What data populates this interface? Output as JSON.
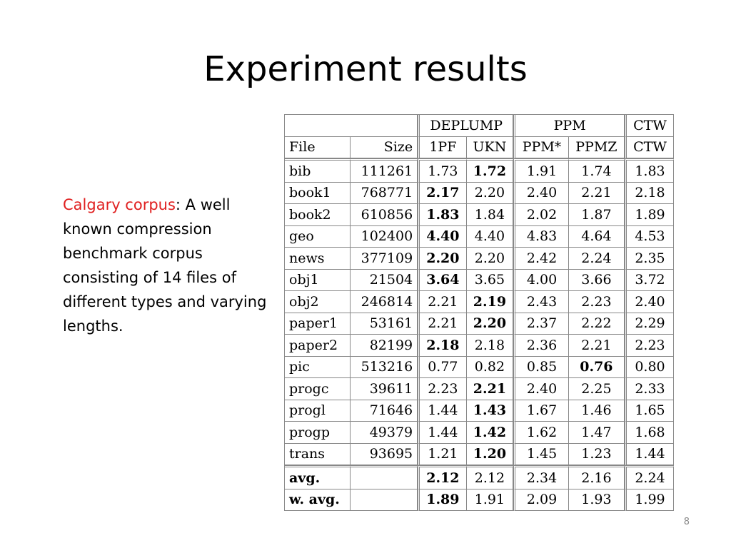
{
  "slide": {
    "title": "Experiment results",
    "description_highlight": "Calgary corpus",
    "description_rest": ": A well known compression benchmark corpus consisting of 14 files of different types and varying lengths.",
    "page_number": "8"
  },
  "table": {
    "group_headers": [
      "DEPLUMP",
      "PPM",
      "CTW"
    ],
    "col_headers": [
      "File",
      "Size",
      "1PF",
      "UKN",
      "PPM*",
      "PPMZ",
      "CTW"
    ],
    "rows": [
      {
        "file": "bib",
        "size": "111261",
        "vals": [
          "1.73",
          "1.72",
          "1.91",
          "1.74",
          "1.83"
        ],
        "bold": [
          false,
          true,
          false,
          false,
          false
        ]
      },
      {
        "file": "book1",
        "size": "768771",
        "vals": [
          "2.17",
          "2.20",
          "2.40",
          "2.21",
          "2.18"
        ],
        "bold": [
          true,
          false,
          false,
          false,
          false
        ]
      },
      {
        "file": "book2",
        "size": "610856",
        "vals": [
          "1.83",
          "1.84",
          "2.02",
          "1.87",
          "1.89"
        ],
        "bold": [
          true,
          false,
          false,
          false,
          false
        ]
      },
      {
        "file": "geo",
        "size": "102400",
        "vals": [
          "4.40",
          "4.40",
          "4.83",
          "4.64",
          "4.53"
        ],
        "bold": [
          true,
          false,
          false,
          false,
          false
        ]
      },
      {
        "file": "news",
        "size": "377109",
        "vals": [
          "2.20",
          "2.20",
          "2.42",
          "2.24",
          "2.35"
        ],
        "bold": [
          true,
          false,
          false,
          false,
          false
        ]
      },
      {
        "file": "obj1",
        "size": "21504",
        "vals": [
          "3.64",
          "3.65",
          "4.00",
          "3.66",
          "3.72"
        ],
        "bold": [
          true,
          false,
          false,
          false,
          false
        ]
      },
      {
        "file": "obj2",
        "size": "246814",
        "vals": [
          "2.21",
          "2.19",
          "2.43",
          "2.23",
          "2.40"
        ],
        "bold": [
          false,
          true,
          false,
          false,
          false
        ]
      },
      {
        "file": "paper1",
        "size": "53161",
        "vals": [
          "2.21",
          "2.20",
          "2.37",
          "2.22",
          "2.29"
        ],
        "bold": [
          false,
          true,
          false,
          false,
          false
        ]
      },
      {
        "file": "paper2",
        "size": "82199",
        "vals": [
          "2.18",
          "2.18",
          "2.36",
          "2.21",
          "2.23"
        ],
        "bold": [
          true,
          false,
          false,
          false,
          false
        ]
      },
      {
        "file": "pic",
        "size": "513216",
        "vals": [
          "0.77",
          "0.82",
          "0.85",
          "0.76",
          "0.80"
        ],
        "bold": [
          false,
          false,
          false,
          true,
          false
        ]
      },
      {
        "file": "progc",
        "size": "39611",
        "vals": [
          "2.23",
          "2.21",
          "2.40",
          "2.25",
          "2.33"
        ],
        "bold": [
          false,
          true,
          false,
          false,
          false
        ]
      },
      {
        "file": "progl",
        "size": "71646",
        "vals": [
          "1.44",
          "1.43",
          "1.67",
          "1.46",
          "1.65"
        ],
        "bold": [
          false,
          true,
          false,
          false,
          false
        ]
      },
      {
        "file": "progp",
        "size": "49379",
        "vals": [
          "1.44",
          "1.42",
          "1.62",
          "1.47",
          "1.68"
        ],
        "bold": [
          false,
          true,
          false,
          false,
          false
        ]
      },
      {
        "file": "trans",
        "size": "93695",
        "vals": [
          "1.21",
          "1.20",
          "1.45",
          "1.23",
          "1.44"
        ],
        "bold": [
          false,
          true,
          false,
          false,
          false
        ]
      }
    ],
    "summary": [
      {
        "label": "avg.",
        "vals": [
          "2.12",
          "2.12",
          "2.34",
          "2.16",
          "2.24"
        ],
        "bold": [
          true,
          false,
          false,
          false,
          false
        ]
      },
      {
        "label": "w. avg.",
        "vals": [
          "1.89",
          "1.91",
          "2.09",
          "1.93",
          "1.99"
        ],
        "bold": [
          true,
          false,
          false,
          false,
          false
        ]
      }
    ]
  }
}
